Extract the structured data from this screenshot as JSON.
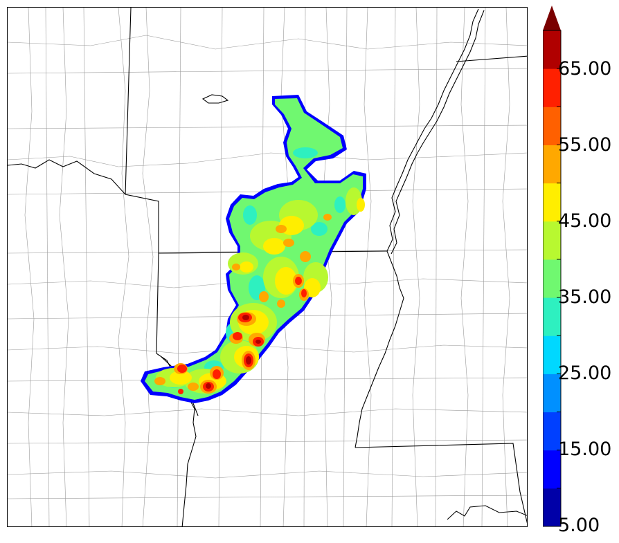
{
  "map": {
    "field": "precipitation-like shaded contour field",
    "background": "white",
    "state_line_color": "#000000",
    "county_line_color": "#9a9a9a"
  },
  "colorbar": {
    "min": 5,
    "max": 70,
    "step": 5,
    "extend": "max",
    "levels": [
      5,
      10,
      15,
      20,
      25,
      30,
      35,
      40,
      45,
      50,
      55,
      60,
      65,
      70
    ],
    "colors": [
      "#0000a8",
      "#0000ff",
      "#0040ff",
      "#0090ff",
      "#00d8ff",
      "#2ef0c0",
      "#70f870",
      "#b8f830",
      "#ffee00",
      "#ffa800",
      "#ff6000",
      "#ff2000",
      "#b00000"
    ],
    "extend_color": "#7a0000",
    "tick_labels": [
      "5.00",
      "15.00",
      "25.00",
      "35.00",
      "45.00",
      "55.00",
      "65.00"
    ]
  }
}
